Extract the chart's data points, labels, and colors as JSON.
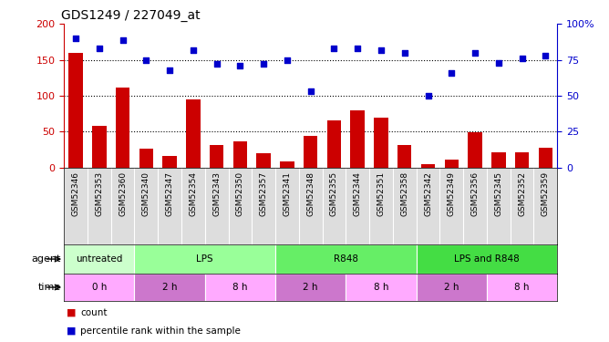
{
  "title": "GDS1249 / 227049_at",
  "categories": [
    "GSM52346",
    "GSM52353",
    "GSM52360",
    "GSM52340",
    "GSM52347",
    "GSM52354",
    "GSM52343",
    "GSM52350",
    "GSM52357",
    "GSM52341",
    "GSM52348",
    "GSM52355",
    "GSM52344",
    "GSM52351",
    "GSM52358",
    "GSM52342",
    "GSM52349",
    "GSM52356",
    "GSM52345",
    "GSM52352",
    "GSM52359"
  ],
  "bar_values": [
    160,
    58,
    112,
    26,
    16,
    95,
    32,
    37,
    20,
    9,
    44,
    66,
    80,
    70,
    31,
    5,
    11,
    49,
    21,
    21,
    27
  ],
  "dot_values": [
    90,
    83,
    89,
    75,
    68,
    82,
    72,
    71,
    72,
    75,
    53,
    83,
    83,
    82,
    80,
    50,
    66,
    80,
    73,
    76,
    78
  ],
  "bar_color": "#cc0000",
  "dot_color": "#0000cc",
  "ylim_left": [
    0,
    200
  ],
  "ylim_right": [
    0,
    100
  ],
  "yticks_left": [
    0,
    50,
    100,
    150,
    200
  ],
  "ytick_labels_left": [
    "0",
    "50",
    "100",
    "150",
    "200"
  ],
  "yticks_right": [
    0,
    25,
    50,
    75,
    100
  ],
  "ytick_labels_right": [
    "0",
    "25",
    "50",
    "75",
    "100%"
  ],
  "agent_groups": [
    {
      "label": "untreated",
      "color": "#ccffcc",
      "start": 0,
      "end": 3
    },
    {
      "label": "LPS",
      "color": "#99ff99",
      "start": 3,
      "end": 9
    },
    {
      "label": "R848",
      "color": "#66ee66",
      "start": 9,
      "end": 15
    },
    {
      "label": "LPS and R848",
      "color": "#44dd44",
      "start": 15,
      "end": 21
    }
  ],
  "time_groups": [
    {
      "label": "0 h",
      "color": "#ffaaff",
      "start": 0,
      "end": 3
    },
    {
      "label": "2 h",
      "color": "#cc77cc",
      "start": 3,
      "end": 6
    },
    {
      "label": "8 h",
      "color": "#ffaaff",
      "start": 6,
      "end": 9
    },
    {
      "label": "2 h",
      "color": "#cc77cc",
      "start": 9,
      "end": 12
    },
    {
      "label": "8 h",
      "color": "#ffaaff",
      "start": 12,
      "end": 15
    },
    {
      "label": "2 h",
      "color": "#cc77cc",
      "start": 15,
      "end": 18
    },
    {
      "label": "8 h",
      "color": "#ffaaff",
      "start": 18,
      "end": 21
    }
  ],
  "legend_items": [
    {
      "label": "count",
      "color": "#cc0000"
    },
    {
      "label": "percentile rank within the sample",
      "color": "#0000cc"
    }
  ],
  "label_row_color": "#dddddd",
  "n": 21
}
